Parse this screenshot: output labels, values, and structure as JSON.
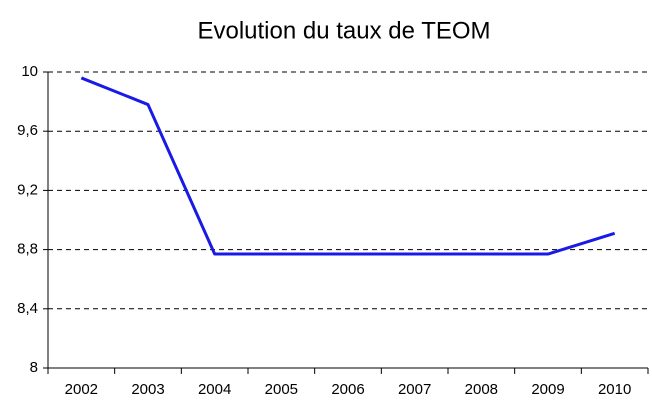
{
  "chart_data": {
    "type": "line",
    "title": "Evolution du taux de TEOM",
    "categories": [
      "2002",
      "2003",
      "2004",
      "2005",
      "2006",
      "2007",
      "2008",
      "2009",
      "2010"
    ],
    "series": [
      {
        "name": "TEOM",
        "color": "#1a1ae6",
        "values": [
          9.96,
          9.78,
          8.77,
          8.77,
          8.77,
          8.77,
          8.77,
          8.77,
          8.91
        ]
      }
    ],
    "ylim": [
      8,
      10
    ],
    "yticks": [
      8,
      {
        "value": 8.4,
        "label": "8,4"
      },
      {
        "value": 8.8,
        "label": "8,8"
      },
      {
        "value": 9.2,
        "label": "9,2"
      },
      {
        "value": 9.6,
        "label": "9,6"
      },
      10
    ],
    "grid": true
  }
}
